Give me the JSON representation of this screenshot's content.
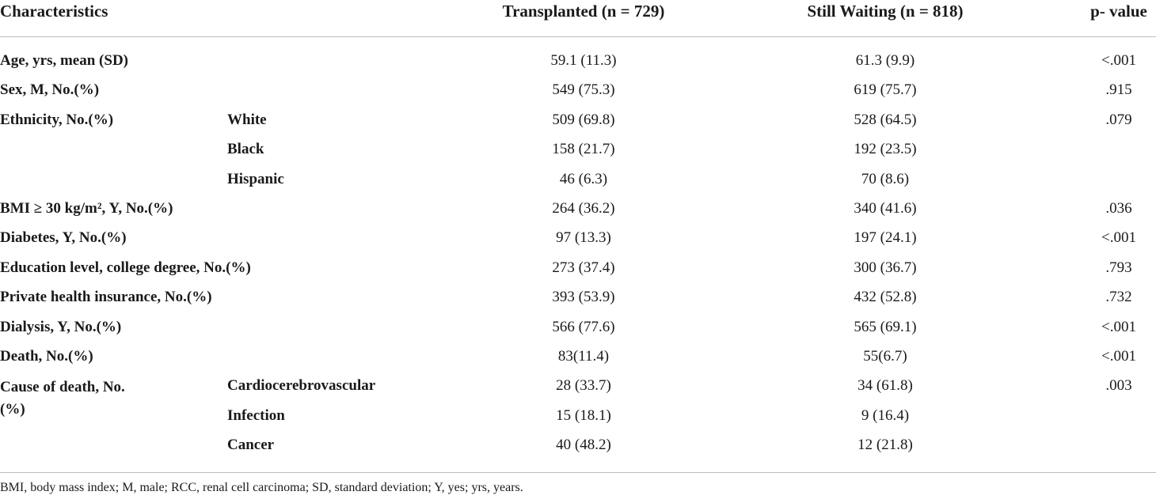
{
  "table": {
    "header": [
      "Characteristics",
      "Transplanted (n = 729)",
      "Still Waiting (n = 818)",
      "p- value"
    ],
    "rows": [
      {
        "characteristic": "Age, yrs, mean (SD)",
        "transplanted": "59.1 (11.3)",
        "waiting": "61.3 (9.9)",
        "p_value": "<.001"
      },
      {
        "characteristic": "Sex, M, No.(%)",
        "transplanted": "549 (75.3)",
        "waiting": "619 (75.7)",
        "p_value": ".915"
      },
      {
        "characteristic": "Ethnicity, No.(%)",
        "subgroup": "White",
        "transplanted": "509 (69.8)",
        "waiting": "528 (64.5)",
        "p_value": ".079"
      },
      {
        "subgroup": "Black",
        "transplanted": "158 (21.7)",
        "waiting": "192 (23.5)"
      },
      {
        "subgroup": "Hispanic",
        "transplanted": "46 (6.3)",
        "waiting": "70 (8.6)"
      },
      {
        "characteristic": "BMI ≥ 30 kg/m², Y, No.(%)",
        "transplanted": "264 (36.2)",
        "waiting": "340 (41.6)",
        "p_value": ".036"
      },
      {
        "characteristic": "Diabetes, Y, No.(%)",
        "transplanted": "97 (13.3)",
        "waiting": "197 (24.1)",
        "p_value": "<.001"
      },
      {
        "characteristic": "Education level, college degree, No.(%)",
        "transplanted": "273 (37.4)",
        "waiting": "300 (36.7)",
        "p_value": ".793"
      },
      {
        "characteristic": "Private health insurance, No.(%)",
        "transplanted": "393 (53.9)",
        "waiting": "432 (52.8)",
        "p_value": ".732"
      },
      {
        "characteristic": "Dialysis, Y, No.(%)",
        "transplanted": "566 (77.6)",
        "waiting": "565 (69.1)",
        "p_value": "<.001"
      },
      {
        "characteristic": "Death, No.(%)",
        "transplanted": "83(11.4)",
        "waiting": "55(6.7)",
        "p_value": "<.001"
      },
      {
        "characteristic": "Cause of death, No.(%)",
        "subgroup": "Cardiocerebrovascular",
        "transplanted": "28 (33.7)",
        "waiting": "34 (61.8)",
        "p_value": ".003"
      },
      {
        "subgroup": "Infection",
        "transplanted": "15 (18.1)",
        "waiting": "9 (16.4)"
      },
      {
        "subgroup": "Cancer",
        "transplanted": "40 (48.2)",
        "waiting": "12 (21.8)"
      }
    ],
    "footnote": "BMI, body mass index; M, male; RCC, renal cell carcinoma; SD, standard deviation; Y, yes; yrs, years."
  }
}
